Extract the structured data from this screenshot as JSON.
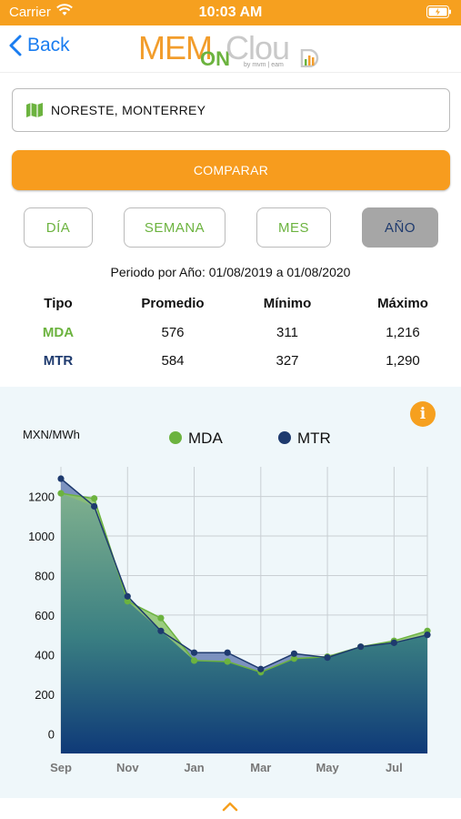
{
  "status_bar": {
    "carrier": "Carrier",
    "time": "10:03 AM"
  },
  "nav": {
    "back_label": "Back",
    "logo_mem": "MEM",
    "logo_on": "ON",
    "logo_cloud": "Clou",
    "logo_tag": "by mvm | eam"
  },
  "location": {
    "value": "NORESTE, MONTERREY"
  },
  "compare_label": "COMPARAR",
  "period_buttons": [
    {
      "label": "DÍA",
      "active": false
    },
    {
      "label": "SEMANA",
      "active": false
    },
    {
      "label": "MES",
      "active": false
    },
    {
      "label": "AÑO",
      "active": true
    }
  ],
  "period_text": "Periodo por Año: 01/08/2019 a 01/08/2020",
  "stats": {
    "headers": [
      "Tipo",
      "Promedio",
      "Mínimo",
      "Máximo"
    ],
    "rows": [
      {
        "tipo": "MDA",
        "promedio": "576",
        "minimo": "311",
        "maximo": "1,216"
      },
      {
        "tipo": "MTR",
        "promedio": "584",
        "minimo": "327",
        "maximo": "1,290"
      }
    ]
  },
  "colors": {
    "accent": "#f6a01f",
    "mda": "#6cb33f",
    "mtr": "#1e3a6e",
    "link": "#1a7df0"
  },
  "chart_data": {
    "type": "area",
    "ylabel": "MXN/MWh",
    "y_ticks": [
      0,
      200,
      400,
      600,
      800,
      1000,
      1200
    ],
    "ylim": [
      -100,
      1350
    ],
    "x_ticks": [
      "Sep",
      "Nov",
      "Jan",
      "Mar",
      "May",
      "Jul"
    ],
    "x": [
      "Sep 2019",
      "Oct 2019",
      "Nov 2019",
      "Dec 2019",
      "Jan 2020",
      "Feb 2020",
      "Mar 2020",
      "Apr 2020",
      "May 2020",
      "Jun 2020",
      "Jul 2020",
      "Aug 2020"
    ],
    "grid": true,
    "legend": "top-center",
    "series": [
      {
        "name": "MDA",
        "color": "#6cb33f",
        "values": [
          1216,
          1190,
          670,
          585,
          370,
          365,
          311,
          380,
          390,
          440,
          470,
          520
        ]
      },
      {
        "name": "MTR",
        "color": "#1e3a6e",
        "values": [
          1290,
          1150,
          695,
          520,
          410,
          410,
          327,
          405,
          385,
          440,
          460,
          500
        ]
      }
    ]
  }
}
